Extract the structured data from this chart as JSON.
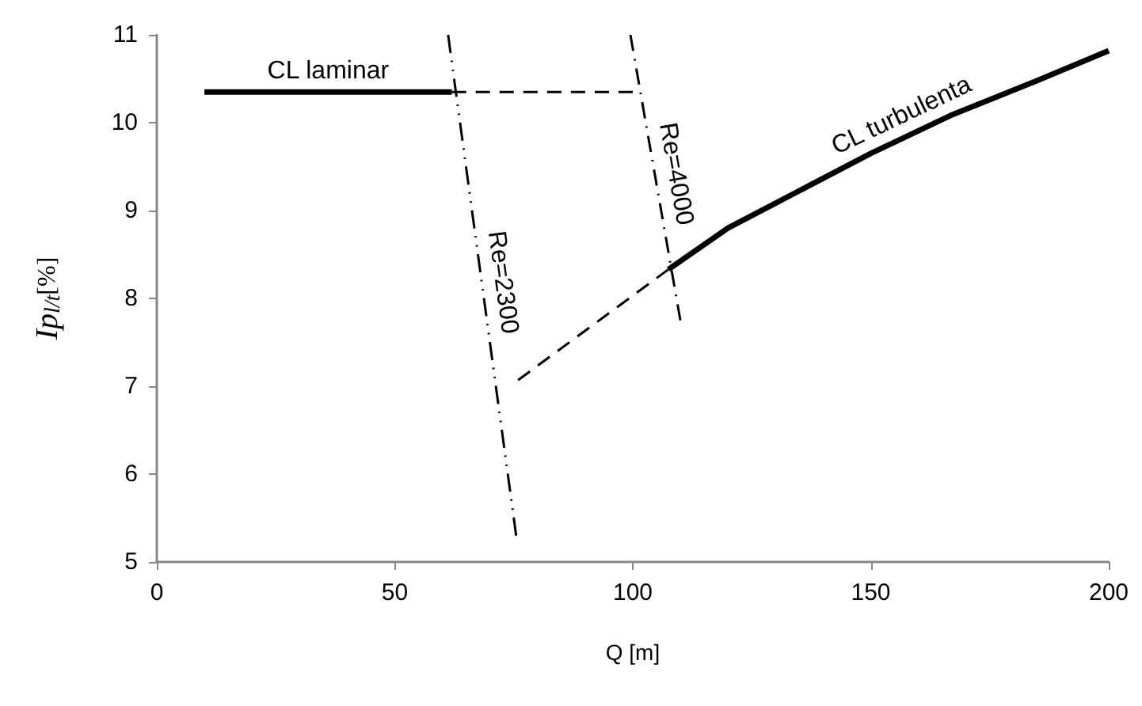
{
  "chart_data": {
    "type": "line",
    "xlabel": "Q [m]",
    "ylabel": "Ip$_{l/t}$[%]",
    "xlim": [
      0,
      200
    ],
    "xticks": [
      0,
      50,
      100,
      150,
      200
    ],
    "ylim": [
      5,
      11
    ],
    "yticks": [
      5,
      6,
      7,
      8,
      9,
      10,
      11
    ],
    "grid": false,
    "legend": false,
    "marker": "none",
    "series": [
      {
        "name": "CL laminar",
        "color": "#000000",
        "line_style": "solid",
        "x": [
          10,
          62
        ],
        "values": [
          10.35,
          10.35
        ]
      },
      {
        "color": "#000000",
        "line_style": "dashed",
        "x": [
          62,
          100
        ],
        "values": [
          10.35,
          10.35
        ]
      },
      {
        "name": "Re=2300",
        "color": "#000000",
        "line_style": "dashdotdot",
        "x": [
          61.2,
          75.5
        ],
        "values": [
          11,
          5.3
        ]
      },
      {
        "name": "Re=4000",
        "color": "#000000",
        "line_style": "dashdot",
        "x": [
          99.5,
          110
        ],
        "values": [
          11,
          7.75
        ]
      },
      {
        "color": "#000000",
        "line_style": "dashed",
        "x": [
          75.9,
          107.5
        ],
        "values": [
          7.07,
          8.33
        ]
      },
      {
        "name": "CL turbulenta",
        "color": "#000000",
        "line_style": "solid",
        "x": [
          107.5,
          120,
          133.4,
          150,
          166.7,
          185,
          200
        ],
        "values": [
          8.33,
          8.8,
          9.18,
          9.65,
          10.08,
          10.48,
          10.82
        ]
      }
    ]
  }
}
